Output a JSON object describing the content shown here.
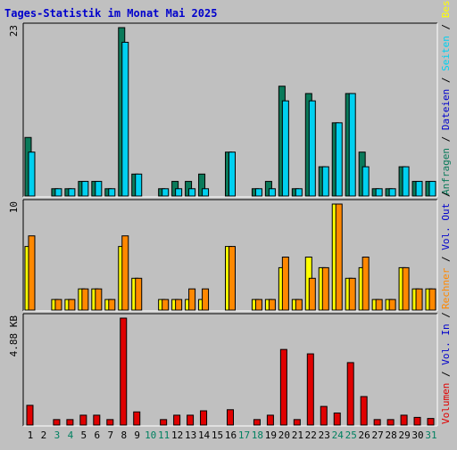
{
  "title": "Tages-Statistik im Monat Mai 2025",
  "colors": {
    "background": "#c0c0c0",
    "plot_background": "#c0c0c0",
    "title": "#0000cc",
    "anfragen": "#0a7a5a",
    "dateien": "#00d0f0",
    "seiten": "#00d0f0",
    "besuche": "#ffff00",
    "rechner": "#ff8800",
    "volumen": "#e00000",
    "weekday_label": "#000000",
    "weekend_label": "#008060",
    "separator": "#000000"
  },
  "chart_data": [
    {
      "type": "bar",
      "panel": "top",
      "ytick_label": "23",
      "ylim": [
        0,
        23
      ],
      "categories": [
        "1",
        "2",
        "3",
        "4",
        "5",
        "6",
        "7",
        "8",
        "9",
        "10",
        "11",
        "12",
        "13",
        "14",
        "15",
        "16",
        "17",
        "18",
        "19",
        "20",
        "21",
        "22",
        "23",
        "24",
        "25",
        "26",
        "27",
        "28",
        "29",
        "30",
        "31"
      ],
      "series": [
        {
          "name": "Anfragen",
          "color": "#0a7a5a",
          "values": [
            8,
            0,
            1,
            1,
            2,
            2,
            1,
            23,
            3,
            0,
            1,
            2,
            2,
            3,
            0,
            6,
            0,
            1,
            2,
            15,
            1,
            14,
            4,
            10,
            14,
            6,
            1,
            1,
            4,
            2,
            2
          ]
        },
        {
          "name": "Dateien",
          "color": "#00d0f0",
          "values": [
            6,
            0,
            1,
            1,
            2,
            2,
            1,
            21,
            3,
            0,
            1,
            1,
            1,
            1,
            0,
            6,
            0,
            1,
            1,
            13,
            1,
            13,
            4,
            10,
            14,
            4,
            1,
            1,
            4,
            2,
            2
          ]
        }
      ],
      "right_legend": [
        {
          "text": "Anfragen",
          "color": "#0a7a5a"
        },
        {
          "text": " / ",
          "color": "#000000"
        },
        {
          "text": "Dateien",
          "color": "#0000cc"
        },
        {
          "text": " / ",
          "color": "#000000"
        },
        {
          "text": "Seiten",
          "color": "#00d0f0"
        },
        {
          "text": " / ",
          "color": "#000000"
        },
        {
          "text": "Besuche",
          "color": "#ffff00"
        }
      ]
    },
    {
      "type": "bar",
      "panel": "middle",
      "ytick_label": "10",
      "ylim": [
        0,
        10
      ],
      "categories": [
        "1",
        "2",
        "3",
        "4",
        "5",
        "6",
        "7",
        "8",
        "9",
        "10",
        "11",
        "12",
        "13",
        "14",
        "15",
        "16",
        "17",
        "18",
        "19",
        "20",
        "21",
        "22",
        "23",
        "24",
        "25",
        "26",
        "27",
        "28",
        "29",
        "30",
        "31"
      ],
      "series": [
        {
          "name": "Besuche",
          "color": "#ffff00",
          "values": [
            6,
            0,
            1,
            1,
            2,
            2,
            1,
            6,
            3,
            0,
            1,
            1,
            1,
            1,
            0,
            6,
            0,
            1,
            1,
            4,
            1,
            5,
            4,
            10,
            3,
            4,
            1,
            1,
            4,
            2,
            2
          ]
        },
        {
          "name": "Rechner",
          "color": "#ff8800",
          "values": [
            7,
            0,
            1,
            1,
            2,
            2,
            1,
            7,
            3,
            0,
            1,
            1,
            2,
            2,
            0,
            6,
            0,
            1,
            1,
            5,
            1,
            3,
            4,
            10,
            3,
            5,
            1,
            1,
            4,
            2,
            2
          ]
        }
      ],
      "right_legend": [
        {
          "text": "Rechner",
          "color": "#ff8800"
        },
        {
          "text": " / ",
          "color": "#000000"
        },
        {
          "text": "Vol. Out",
          "color": "#0000cc"
        },
        {
          "text": " / ",
          "color": "#000000"
        }
      ]
    },
    {
      "type": "bar",
      "panel": "bottom",
      "ytick_label": "4.88 KB",
      "ylim": [
        0,
        4.88
      ],
      "categories": [
        "1",
        "2",
        "3",
        "4",
        "5",
        "6",
        "7",
        "8",
        "9",
        "10",
        "11",
        "12",
        "13",
        "14",
        "15",
        "16",
        "17",
        "18",
        "19",
        "20",
        "21",
        "22",
        "23",
        "24",
        "25",
        "26",
        "27",
        "28",
        "29",
        "30",
        "31"
      ],
      "series": [
        {
          "name": "Volumen",
          "color": "#e00000",
          "values": [
            0.9,
            0,
            0.25,
            0.25,
            0.45,
            0.45,
            0.25,
            4.88,
            0.6,
            0,
            0.25,
            0.45,
            0.45,
            0.65,
            0,
            0.7,
            0,
            0.25,
            0.45,
            3.45,
            0.25,
            3.25,
            0.85,
            0.55,
            2.85,
            1.3,
            0.25,
            0.25,
            0.45,
            0.35,
            0.3
          ]
        }
      ],
      "right_legend": [
        {
          "text": "Volumen",
          "color": "#e00000"
        },
        {
          "text": " / ",
          "color": "#000000"
        },
        {
          "text": "Vol. In",
          "color": "#0000cc"
        },
        {
          "text": " / ",
          "color": "#000000"
        }
      ]
    }
  ],
  "x_labels": [
    {
      "text": "1",
      "weekend": false
    },
    {
      "text": "2",
      "weekend": false
    },
    {
      "text": "3",
      "weekend": true
    },
    {
      "text": "4",
      "weekend": true
    },
    {
      "text": "5",
      "weekend": false
    },
    {
      "text": "6",
      "weekend": false
    },
    {
      "text": "7",
      "weekend": false
    },
    {
      "text": "8",
      "weekend": false
    },
    {
      "text": "9",
      "weekend": false
    },
    {
      "text": "10",
      "weekend": true
    },
    {
      "text": "11",
      "weekend": true
    },
    {
      "text": "12",
      "weekend": false
    },
    {
      "text": "13",
      "weekend": false
    },
    {
      "text": "14",
      "weekend": false
    },
    {
      "text": "15",
      "weekend": false
    },
    {
      "text": "16",
      "weekend": false
    },
    {
      "text": "17",
      "weekend": true
    },
    {
      "text": "18",
      "weekend": true
    },
    {
      "text": "19",
      "weekend": false
    },
    {
      "text": "20",
      "weekend": false
    },
    {
      "text": "21",
      "weekend": false
    },
    {
      "text": "22",
      "weekend": false
    },
    {
      "text": "23",
      "weekend": false
    },
    {
      "text": "24",
      "weekend": true
    },
    {
      "text": "25",
      "weekend": true
    },
    {
      "text": "26",
      "weekend": false
    },
    {
      "text": "27",
      "weekend": false
    },
    {
      "text": "28",
      "weekend": false
    },
    {
      "text": "29",
      "weekend": false
    },
    {
      "text": "30",
      "weekend": false
    },
    {
      "text": "31",
      "weekend": true
    }
  ]
}
